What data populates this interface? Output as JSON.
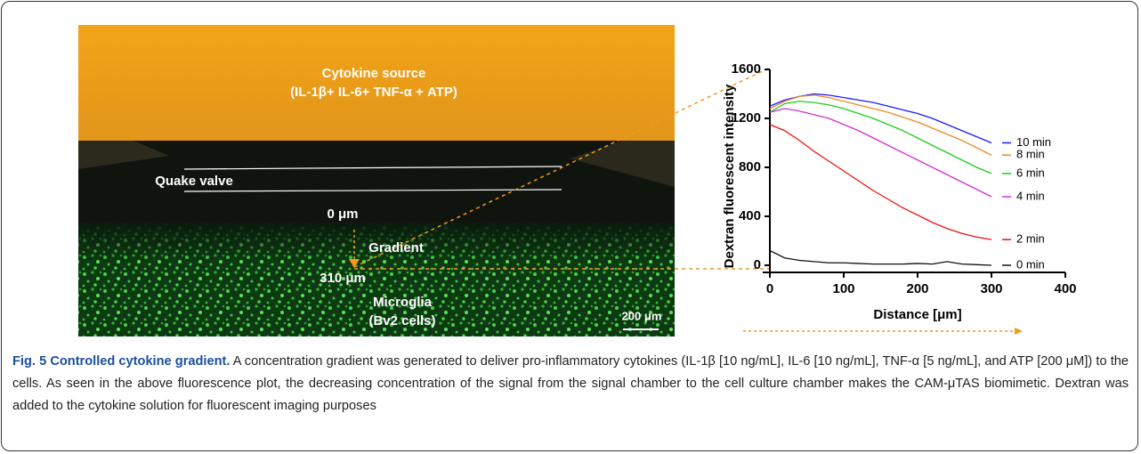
{
  "image": {
    "source_title": "Cytokine source",
    "source_subtitle": "(IL-1β+ IL-6+ TNF-α + ATP)",
    "valve": "Quake valve",
    "start": "0 μm",
    "gradient": "Gradient",
    "end": "310 μm",
    "cells_title": "Microglia",
    "cells_subtitle": "(Bv2 cells)",
    "scale_bar": "200 μm"
  },
  "chart_data": {
    "type": "line",
    "xlabel": "Distance [μm]",
    "ylabel": "Dextran fluorescent  intensity",
    "x": [
      0,
      20,
      40,
      60,
      80,
      100,
      120,
      140,
      160,
      180,
      200,
      220,
      240,
      260,
      280,
      300
    ],
    "series": [
      {
        "name": "10 min",
        "color": "#1a1aff",
        "values": [
          1300,
          1350,
          1380,
          1400,
          1390,
          1370,
          1350,
          1330,
          1300,
          1270,
          1240,
          1200,
          1150,
          1100,
          1050,
          1000
        ]
      },
      {
        "name": "8 min",
        "color": "#f08a24",
        "values": [
          1280,
          1340,
          1380,
          1390,
          1370,
          1340,
          1310,
          1280,
          1250,
          1210,
          1170,
          1120,
          1070,
          1020,
          960,
          900
        ]
      },
      {
        "name": "6 min",
        "color": "#1ecc1e",
        "values": [
          1250,
          1320,
          1340,
          1330,
          1310,
          1280,
          1240,
          1200,
          1150,
          1100,
          1040,
          980,
          920,
          860,
          800,
          750
        ]
      },
      {
        "name": "4 min",
        "color": "#cc33cc",
        "values": [
          1250,
          1280,
          1260,
          1230,
          1200,
          1150,
          1100,
          1040,
          980,
          920,
          860,
          800,
          740,
          680,
          620,
          560
        ]
      },
      {
        "name": "2 min",
        "color": "#ee1111",
        "values": [
          1150,
          1100,
          1020,
          930,
          850,
          770,
          690,
          610,
          540,
          470,
          410,
          350,
          300,
          260,
          230,
          210
        ]
      },
      {
        "name": "0 min",
        "color": "#111111",
        "values": [
          120,
          60,
          40,
          30,
          20,
          20,
          15,
          10,
          10,
          10,
          15,
          10,
          30,
          10,
          5,
          0
        ]
      }
    ],
    "xlim": [
      0,
      400
    ],
    "ylim": [
      0,
      1600
    ],
    "xticks": [
      0,
      100,
      200,
      300,
      400
    ],
    "yticks": [
      0,
      400,
      800,
      1200,
      1600
    ]
  },
  "caption": {
    "label": "Fig. 5 Controlled cytokine gradient.",
    "text": " A concentration gradient was generated to deliver pro-inflammatory cytokines (IL-1β [10 ng/mL], IL-6 [10 ng/mL], TNF-α [5 ng/mL], and ATP [200 μM]) to the cells. As seen in the above fluorescence plot, the decreasing concentration of the signal from the signal chamber to the cell culture chamber makes the CAM-μTAS biomimetic. Dextran was added to the cytokine solution for fluorescent imaging purposes"
  }
}
